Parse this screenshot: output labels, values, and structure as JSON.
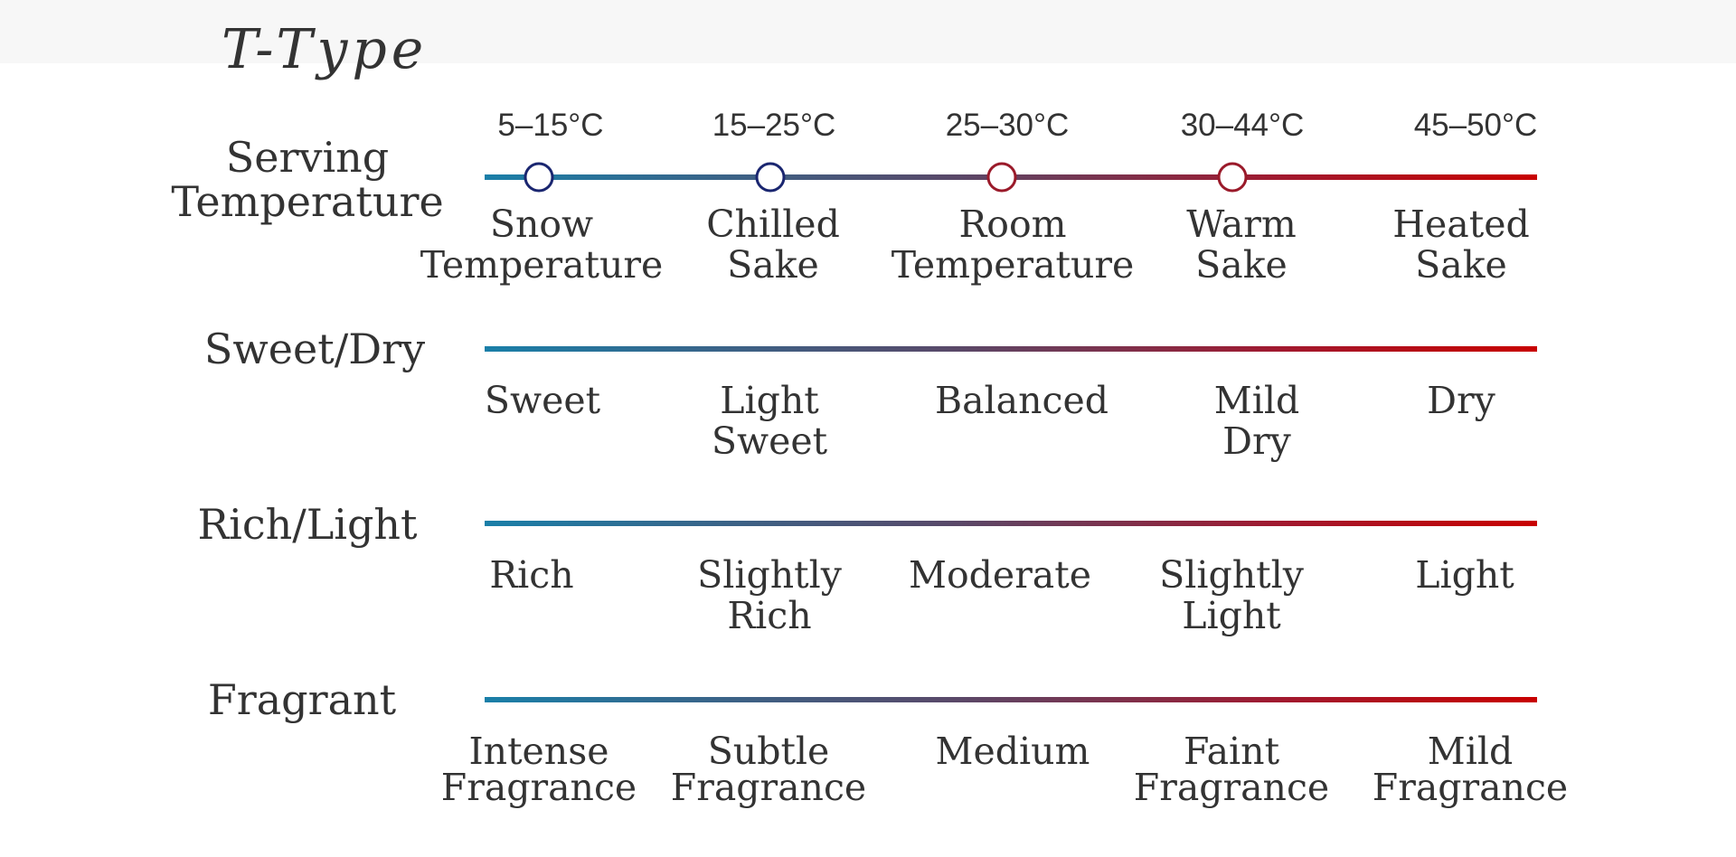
{
  "title": "T-Type",
  "rows": [
    {
      "label": [
        "Serving",
        "Temperature"
      ],
      "ticks": [
        "5–15°C",
        "15–25°C",
        "25–30°C",
        "30–44°C",
        "45–50°C"
      ],
      "levels": [
        [
          "Snow",
          "Temperature"
        ],
        [
          "Chilled",
          "Sake"
        ],
        [
          "Room",
          "Temperature"
        ],
        [
          "Warm",
          "Sake"
        ],
        [
          "Heated",
          "Sake"
        ]
      ]
    },
    {
      "label": [
        "Sweet/Dry"
      ],
      "levels": [
        [
          "Sweet"
        ],
        [
          "Light",
          "Sweet"
        ],
        [
          "Balanced"
        ],
        [
          "Mild",
          "Dry"
        ],
        [
          "Dry"
        ]
      ]
    },
    {
      "label": [
        "Rich/Light"
      ],
      "levels": [
        [
          "Rich"
        ],
        [
          "Slightly",
          "Rich"
        ],
        [
          "Moderate"
        ],
        [
          "Slightly",
          "Light"
        ],
        [
          "Light"
        ]
      ]
    },
    {
      "label": [
        "Fragrant"
      ],
      "levels": [
        [
          "Intense",
          "Fragrance"
        ],
        [
          "Subtle",
          "Fragrance"
        ],
        [
          "Medium"
        ],
        [
          "Faint",
          "Fragrance"
        ],
        [
          "Mild",
          "Fragrance"
        ]
      ]
    }
  ]
}
